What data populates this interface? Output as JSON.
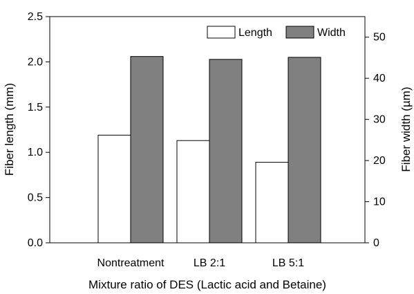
{
  "chart_data": {
    "type": "bar",
    "categories": [
      "Nontreatment",
      "LB 2:1",
      "LB 5:1"
    ],
    "series": [
      {
        "name": "Length",
        "axis": "left",
        "unit": "mm",
        "values": [
          1.19,
          1.13,
          0.89
        ],
        "color": "#ffffff"
      },
      {
        "name": "Width",
        "axis": "right",
        "unit": "µm",
        "values": [
          45.3,
          44.6,
          45.1
        ],
        "color": "#808080"
      }
    ],
    "xlabel": "Mixture ratio of DES (Lactic acid and Betaine)",
    "ylabel_left": "Fiber length (mm)",
    "ylabel_right": "Fiber width (µm)",
    "ylim_left": [
      0,
      2.5
    ],
    "ylim_right": [
      0,
      55
    ],
    "yticks_left": [
      "0.0",
      "0.5",
      "1.0",
      "1.5",
      "2.0",
      "2.5"
    ],
    "yticks_right": [
      "0",
      "10",
      "20",
      "30",
      "40",
      "50"
    ],
    "grid": false,
    "legend": {
      "position": "top-right",
      "orientation": "horizontal"
    }
  }
}
